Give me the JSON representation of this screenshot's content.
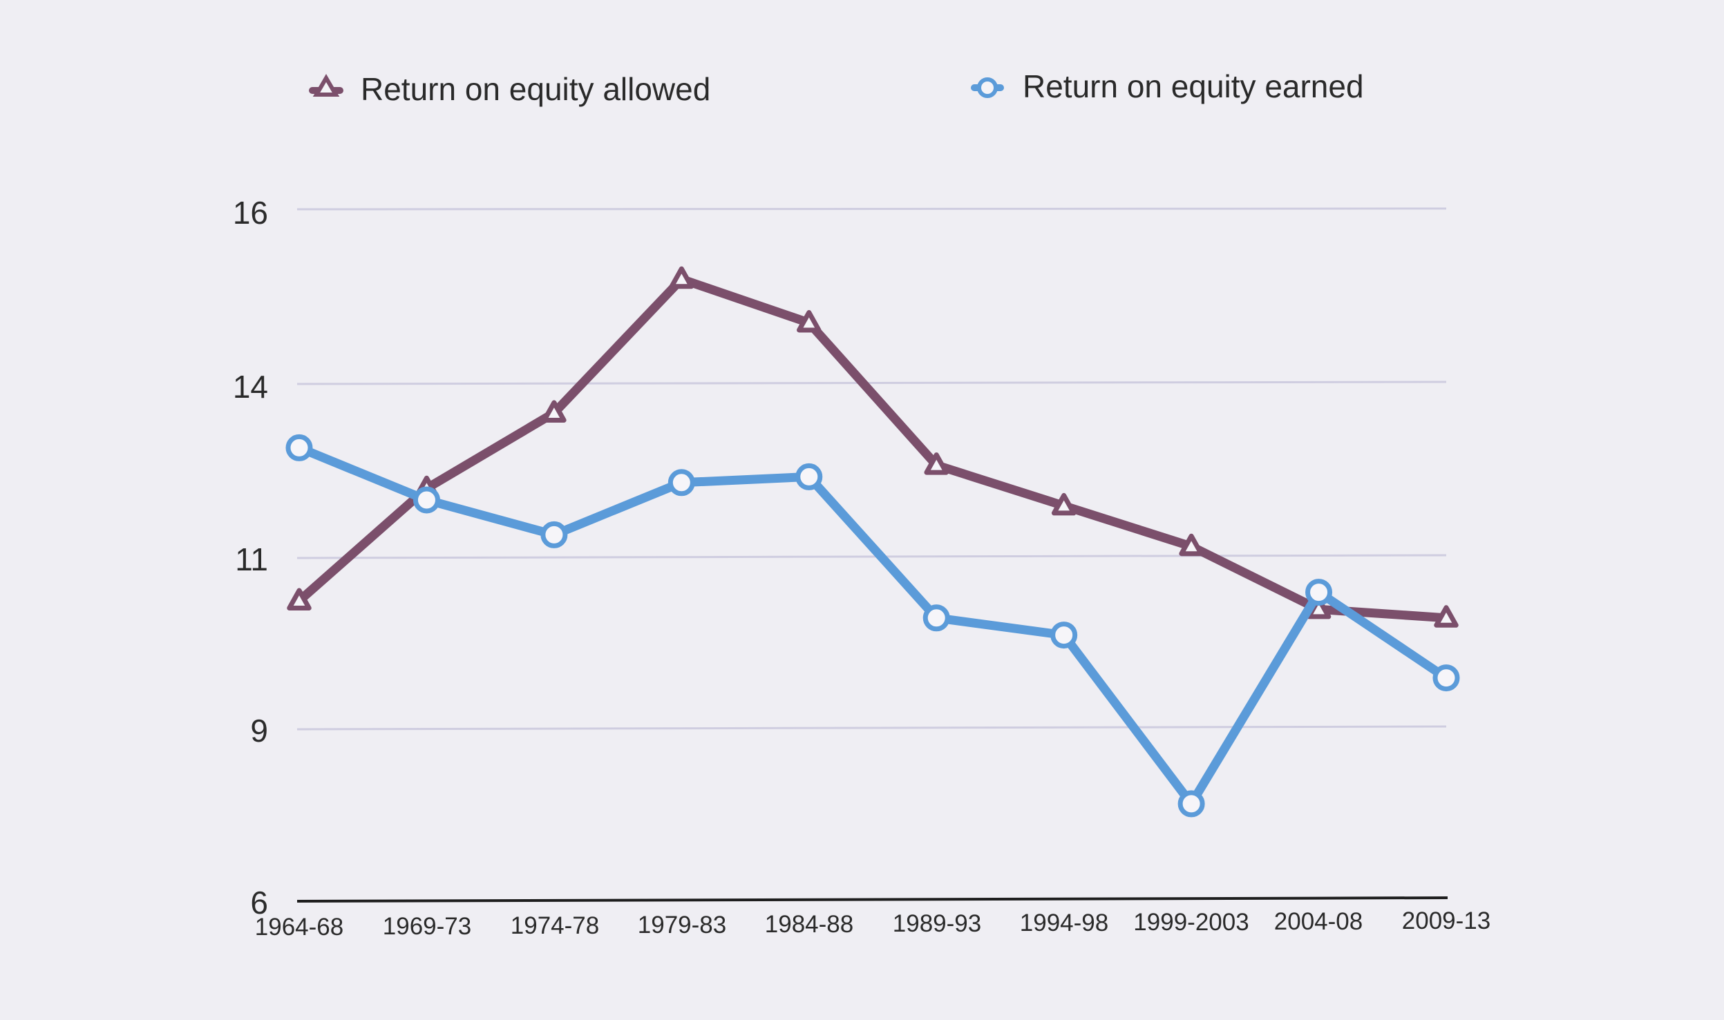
{
  "chart_data": {
    "type": "line",
    "title": "",
    "xlabel": "",
    "ylabel": "",
    "categories": [
      "1964-68",
      "1969-73",
      "1974-78",
      "1979-83",
      "1984-88",
      "1989-93",
      "1994-98",
      "1999-2003",
      "2004-08",
      "2009-13"
    ],
    "ytick_labels": [
      "6",
      "9",
      "11",
      "14",
      "16"
    ],
    "grid": true,
    "legend_position": "top",
    "series": [
      {
        "name": "Return on equity allowed",
        "marker": "triangle",
        "color": "#7b4f6b",
        "values": [
          10.5,
          12.2,
          13.5,
          15.2,
          14.7,
          12.6,
          11.9,
          11.2,
          10.4,
          10.3
        ]
      },
      {
        "name": "Return on equity earned",
        "marker": "circle",
        "color": "#5b9bd9",
        "values": [
          12.9,
          12.0,
          11.4,
          12.3,
          12.4,
          10.3,
          10.1,
          7.7,
          10.6,
          9.6
        ]
      }
    ]
  }
}
